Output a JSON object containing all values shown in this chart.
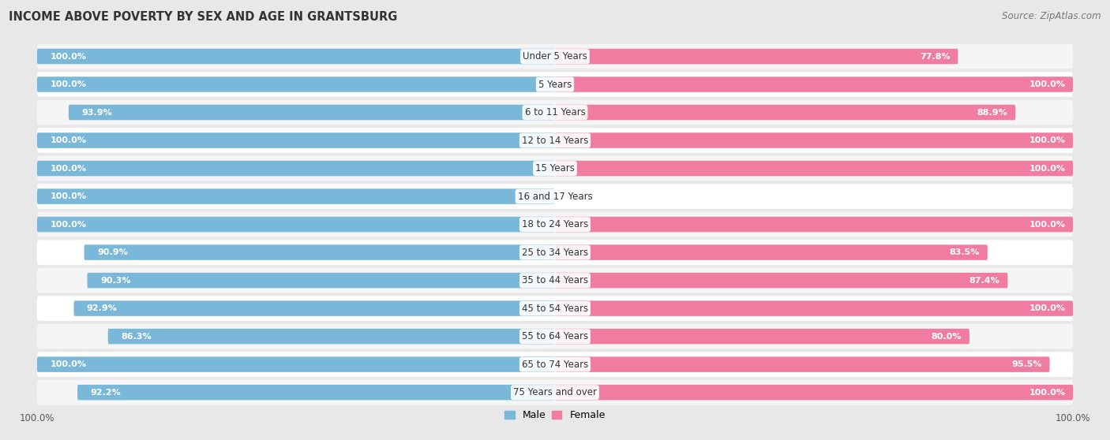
{
  "title": "INCOME ABOVE POVERTY BY SEX AND AGE IN GRANTSBURG",
  "source": "Source: ZipAtlas.com",
  "categories": [
    "Under 5 Years",
    "5 Years",
    "6 to 11 Years",
    "12 to 14 Years",
    "15 Years",
    "16 and 17 Years",
    "18 to 24 Years",
    "25 to 34 Years",
    "35 to 44 Years",
    "45 to 54 Years",
    "55 to 64 Years",
    "65 to 74 Years",
    "75 Years and over"
  ],
  "male": [
    100.0,
    100.0,
    93.9,
    100.0,
    100.0,
    100.0,
    100.0,
    90.9,
    90.3,
    92.9,
    86.3,
    100.0,
    92.2
  ],
  "female": [
    77.8,
    100.0,
    88.9,
    100.0,
    100.0,
    0.0,
    100.0,
    83.5,
    87.4,
    100.0,
    80.0,
    95.5,
    100.0
  ],
  "male_color": "#7ab8d9",
  "female_color": "#f07ca0",
  "male_label": "Male",
  "female_label": "Female",
  "background_color": "#e8e8e8",
  "row_bg_even": "#f5f5f5",
  "row_bg_odd": "#ffffff",
  "title_fontsize": 10.5,
  "label_fontsize": 8.5,
  "value_fontsize": 8.0,
  "tick_fontsize": 8.5,
  "source_fontsize": 8.5
}
